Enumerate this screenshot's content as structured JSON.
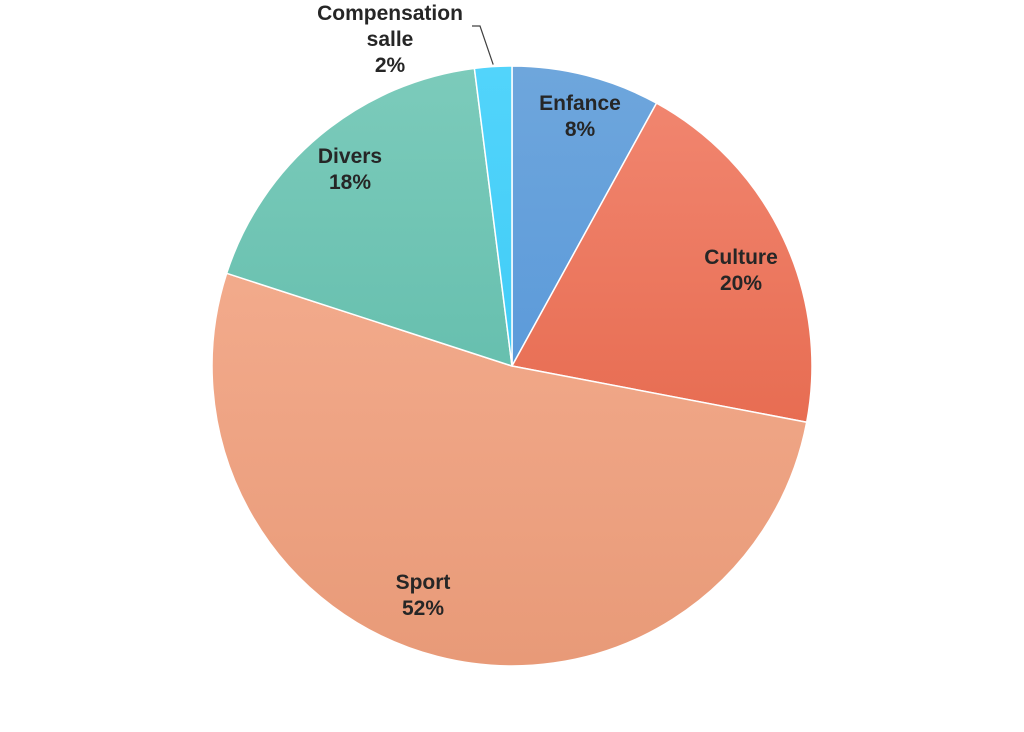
{
  "chart_data": {
    "type": "pie",
    "title": "",
    "legend": "none",
    "start": "top",
    "direction": "clockwise",
    "slices": [
      {
        "name": "Enfance",
        "value": 8,
        "label_lines": [
          "Enfance",
          "8%"
        ],
        "color_top": "#6ea6dc",
        "color_bottom": "#4a8fd8"
      },
      {
        "name": "Culture",
        "value": 20,
        "label_lines": [
          "Culture",
          "20%"
        ],
        "color_top": "#f28872",
        "color_bottom": "#e05a3c"
      },
      {
        "name": "Sport",
        "value": 52,
        "label_lines": [
          "Sport",
          "52%"
        ],
        "color_top": "#f8b396",
        "color_bottom": "#e89a78"
      },
      {
        "name": "Divers",
        "value": 18,
        "label_lines": [
          "Divers",
          "18%"
        ],
        "color_top": "#7ccbbb",
        "color_bottom": "#52b4a2"
      },
      {
        "name": "Compensation salle",
        "value": 2,
        "label_lines": [
          "Compensation",
          "salle",
          "2%"
        ],
        "color_top": "#52d4fb",
        "color_bottom": "#2fc4f2"
      }
    ]
  }
}
